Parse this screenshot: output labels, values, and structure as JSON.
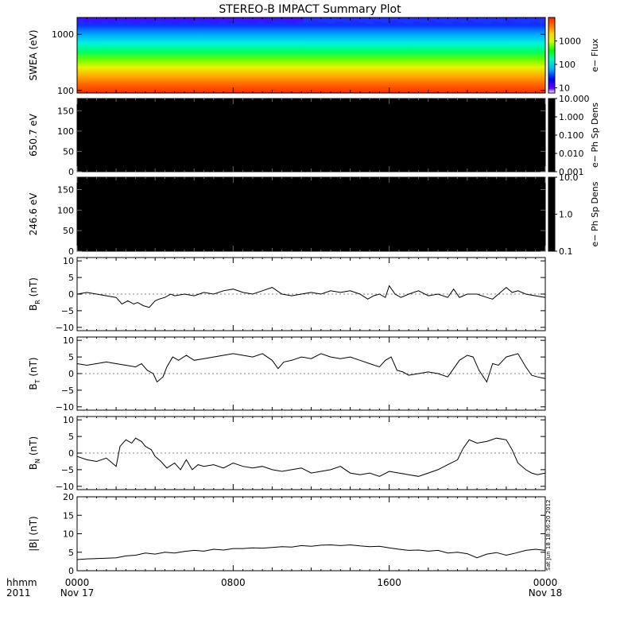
{
  "title": "STEREO-B IMPACT Summary Plot",
  "footer": {
    "time_label": "hhmm",
    "year_label": "2011"
  },
  "side_stamp": "Sat Jun 18 18:36:20 2012",
  "colors": {
    "trace": "#000000",
    "axis": "#000000",
    "background": "#ffffff",
    "black_panel": "#000000"
  },
  "chart_data": {
    "type": "line",
    "x_unit": "time (hhmm)",
    "x_range": [
      "2011-11-17 00:00",
      "2011-11-18 00:00"
    ],
    "x_ticks": [
      {
        "label": "0000",
        "sublabel": "Nov 17",
        "hour": 0
      },
      {
        "label": "0800",
        "sublabel": "",
        "hour": 8
      },
      {
        "label": "1600",
        "sublabel": "",
        "hour": 16
      },
      {
        "label": "0000",
        "sublabel": "Nov 18",
        "hour": 24
      }
    ],
    "panels": [
      {
        "type": "heatmap",
        "ylabel": "SWEA (eV)",
        "yscale": "log",
        "ylim": [
          90,
          2000
        ],
        "yticks": [
          {
            "value": 100,
            "label": "100"
          },
          {
            "value": 1000,
            "label": "1000"
          }
        ],
        "colorbar": {
          "label": "e− Flux",
          "scale": "log",
          "range": [
            6,
            10000
          ],
          "ticks": [
            {
              "value": 10,
              "label": "10"
            },
            {
              "value": 100,
              "label": "100"
            },
            {
              "value": 1000,
              "label": "1000"
            }
          ]
        }
      },
      {
        "type": "heatmap",
        "ylabel": "650.7 eV",
        "ylim": [
          0,
          180
        ],
        "yticks": [
          {
            "value": 0,
            "label": "0"
          },
          {
            "value": 50,
            "label": "50"
          },
          {
            "value": 100,
            "label": "100"
          },
          {
            "value": 150,
            "label": "150"
          }
        ],
        "fill": "black",
        "colorbar": {
          "label": "e− Ph Sp Dens",
          "scale": "log",
          "range": [
            0.001,
            10
          ],
          "fill": "black",
          "ticks": [
            {
              "value": 10,
              "label": "10.000"
            },
            {
              "value": 1,
              "label": "1.000"
            },
            {
              "value": 0.1,
              "label": "0.100"
            },
            {
              "value": 0.01,
              "label": "0.010"
            },
            {
              "value": 0.001,
              "label": "0.001"
            }
          ]
        }
      },
      {
        "type": "heatmap",
        "ylabel": "246.6 eV",
        "ylim": [
          0,
          180
        ],
        "yticks": [
          {
            "value": 0,
            "label": "0"
          },
          {
            "value": 50,
            "label": "50"
          },
          {
            "value": 100,
            "label": "100"
          },
          {
            "value": 150,
            "label": "150"
          }
        ],
        "fill": "black",
        "colorbar": {
          "label": "e− Ph Sp Dens",
          "scale": "log",
          "range": [
            0.1,
            10
          ],
          "fill": "black",
          "ticks": [
            {
              "value": 10,
              "label": "10.0"
            },
            {
              "value": 1,
              "label": "1.0"
            },
            {
              "value": 0.1,
              "label": "0.1"
            }
          ]
        }
      },
      {
        "type": "line",
        "ylabel_main": "B",
        "ylabel_sub": "R",
        "ylabel_unit": "(nT)",
        "ylim": [
          -11,
          11
        ],
        "yticks": [
          {
            "value": -10,
            "label": "−10"
          },
          {
            "value": -5,
            "label": "−5"
          },
          {
            "value": 0,
            "label": "0"
          },
          {
            "value": 5,
            "label": "5"
          },
          {
            "value": 10,
            "label": "10"
          }
        ],
        "series": [
          {
            "x": [
              0,
              0.5,
              1,
              1.5,
              2,
              2.3,
              2.6,
              2.9,
              3.1,
              3.4,
              3.7,
              4,
              4.2,
              4.5,
              4.8,
              5,
              5.5,
              6,
              6.5,
              7,
              7.5,
              8,
              8.5,
              9,
              9.5,
              10,
              10.5,
              11,
              11.5,
              12,
              12.5,
              13,
              13.5,
              14,
              14.5,
              14.9,
              15.2,
              15.5,
              15.8,
              16,
              16.3,
              16.6,
              17,
              17.5,
              18,
              18.5,
              19,
              19.3,
              19.6,
              20,
              20.5,
              21,
              21.3,
              21.6,
              22,
              22.3,
              22.6,
              23,
              23.5,
              24
            ],
            "values": [
              0,
              0.5,
              0,
              -0.5,
              -1,
              -3,
              -2,
              -3,
              -2.5,
              -3.5,
              -4,
              -2,
              -1.5,
              -1,
              0,
              -0.5,
              0,
              -0.5,
              0.5,
              0,
              1,
              1.5,
              0.5,
              0,
              1,
              2,
              0,
              -0.5,
              0,
              0.5,
              0,
              1,
              0.5,
              1,
              0,
              -1.5,
              -0.5,
              0,
              -1,
              2.5,
              0,
              -1,
              0,
              1,
              -0.5,
              0,
              -1,
              1.5,
              -1,
              0,
              0,
              -1,
              -1.5,
              0,
              2,
              0.5,
              1,
              0,
              -0.5,
              -1
            ]
          }
        ]
      },
      {
        "type": "line",
        "ylabel_main": "B",
        "ylabel_sub": "T",
        "ylabel_unit": "(nT)",
        "ylim": [
          -11,
          11
        ],
        "yticks": [
          {
            "value": -10,
            "label": "−10"
          },
          {
            "value": -5,
            "label": "−5"
          },
          {
            "value": 0,
            "label": "0"
          },
          {
            "value": 5,
            "label": "5"
          },
          {
            "value": 10,
            "label": "10"
          }
        ],
        "series": [
          {
            "x": [
              0,
              0.5,
              1,
              1.5,
              2,
              2.5,
              3,
              3.3,
              3.6,
              3.9,
              4.1,
              4.4,
              4.6,
              4.9,
              5.2,
              5.6,
              6,
              6.5,
              7,
              7.5,
              8,
              8.5,
              9,
              9.5,
              10,
              10.3,
              10.6,
              11,
              11.5,
              12,
              12.5,
              13,
              13.5,
              14,
              14.5,
              15,
              15.5,
              15.8,
              16.1,
              16.4,
              16.7,
              17,
              17.5,
              18,
              18.5,
              19,
              19.3,
              19.6,
              20,
              20.3,
              20.6,
              21,
              21.3,
              21.6,
              22,
              22.3,
              22.6,
              23,
              23.3,
              23.6,
              24
            ],
            "values": [
              3,
              2.5,
              3,
              3.5,
              3,
              2.5,
              2,
              3,
              1,
              0,
              -2.5,
              -1,
              2,
              5,
              4,
              5.5,
              4,
              4.5,
              5,
              5.5,
              6,
              5.5,
              5,
              6,
              4,
              1.5,
              3.5,
              4,
              5,
              4.5,
              6,
              5,
              4.5,
              5,
              4,
              3,
              2,
              4,
              5,
              1,
              0.5,
              -0.5,
              0,
              0.5,
              0,
              -1,
              1.5,
              4,
              5.5,
              5,
              1,
              -2.5,
              3,
              2.5,
              5,
              5.5,
              6,
              2,
              -0.5,
              -1,
              -1.5
            ]
          }
        ]
      },
      {
        "type": "line",
        "ylabel_main": "B",
        "ylabel_sub": "N",
        "ylabel_unit": "(nT)",
        "ylim": [
          -11,
          11
        ],
        "yticks": [
          {
            "value": -10,
            "label": "−10"
          },
          {
            "value": -5,
            "label": "−5"
          },
          {
            "value": 0,
            "label": "0"
          },
          {
            "value": 5,
            "label": "5"
          },
          {
            "value": 10,
            "label": "10"
          }
        ],
        "series": [
          {
            "x": [
              0,
              0.5,
              1,
              1.5,
              2,
              2.2,
              2.5,
              2.8,
              3,
              3.3,
              3.5,
              3.8,
              4,
              4.3,
              4.6,
              5,
              5.3,
              5.6,
              5.9,
              6.2,
              6.5,
              7,
              7.5,
              8,
              8.5,
              9,
              9.5,
              10,
              10.5,
              11,
              11.5,
              12,
              12.5,
              13,
              13.5,
              14,
              14.5,
              15,
              15.5,
              16,
              16.5,
              17,
              17.5,
              18,
              18.5,
              19,
              19.5,
              19.8,
              20.1,
              20.5,
              21,
              21.5,
              22,
              22.3,
              22.6,
              23,
              23.3,
              23.6,
              24
            ],
            "values": [
              -1,
              -2,
              -2.5,
              -1.5,
              -4,
              2,
              4,
              3,
              4.5,
              3.5,
              2,
              1,
              -1,
              -2.5,
              -4.5,
              -3,
              -5,
              -2,
              -5,
              -3.5,
              -4,
              -3.5,
              -4.5,
              -3,
              -4,
              -4.5,
              -4,
              -5,
              -5.5,
              -5,
              -4.5,
              -6,
              -5.5,
              -5,
              -4,
              -6,
              -6.5,
              -6,
              -7,
              -5.5,
              -6,
              -6.5,
              -7,
              -6,
              -5,
              -3.5,
              -2,
              1.5,
              4,
              3,
              3.5,
              4.5,
              4,
              1,
              -3,
              -5,
              -6,
              -6.5,
              -6
            ]
          }
        ]
      },
      {
        "type": "line",
        "ylabel_main": "|B|",
        "ylabel_sub": "",
        "ylabel_unit": "(nT)",
        "ylim": [
          0,
          20
        ],
        "yticks": [
          {
            "value": 0,
            "label": "0"
          },
          {
            "value": 5,
            "label": "5"
          },
          {
            "value": 10,
            "label": "10"
          },
          {
            "value": 15,
            "label": "15"
          },
          {
            "value": 20,
            "label": "20"
          }
        ],
        "series": [
          {
            "x": [
              0,
              0.5,
              1,
              1.5,
              2,
              2.5,
              3,
              3.5,
              4,
              4.5,
              5,
              5.5,
              6,
              6.5,
              7,
              7.5,
              8,
              8.5,
              9,
              9.5,
              10,
              10.5,
              11,
              11.5,
              12,
              12.5,
              13,
              13.5,
              14,
              14.5,
              15,
              15.5,
              16,
              16.5,
              17,
              17.5,
              18,
              18.5,
              19,
              19.5,
              20,
              20.5,
              21,
              21.5,
              22,
              22.5,
              23,
              23.5,
              24
            ],
            "values": [
              3,
              3.2,
              3.3,
              3.4,
              3.5,
              4,
              4.2,
              4.8,
              4.5,
              5,
              4.8,
              5.2,
              5.5,
              5.3,
              5.8,
              5.6,
              6,
              6,
              6.2,
              6.1,
              6.3,
              6.5,
              6.4,
              6.8,
              6.6,
              6.9,
              7,
              6.8,
              7,
              6.7,
              6.5,
              6.6,
              6.2,
              5.8,
              5.5,
              5.6,
              5.3,
              5.5,
              4.8,
              5,
              4.6,
              3.5,
              4.5,
              4.9,
              4.2,
              4.8,
              5.5,
              5.8,
              5.5
            ]
          }
        ]
      }
    ]
  }
}
